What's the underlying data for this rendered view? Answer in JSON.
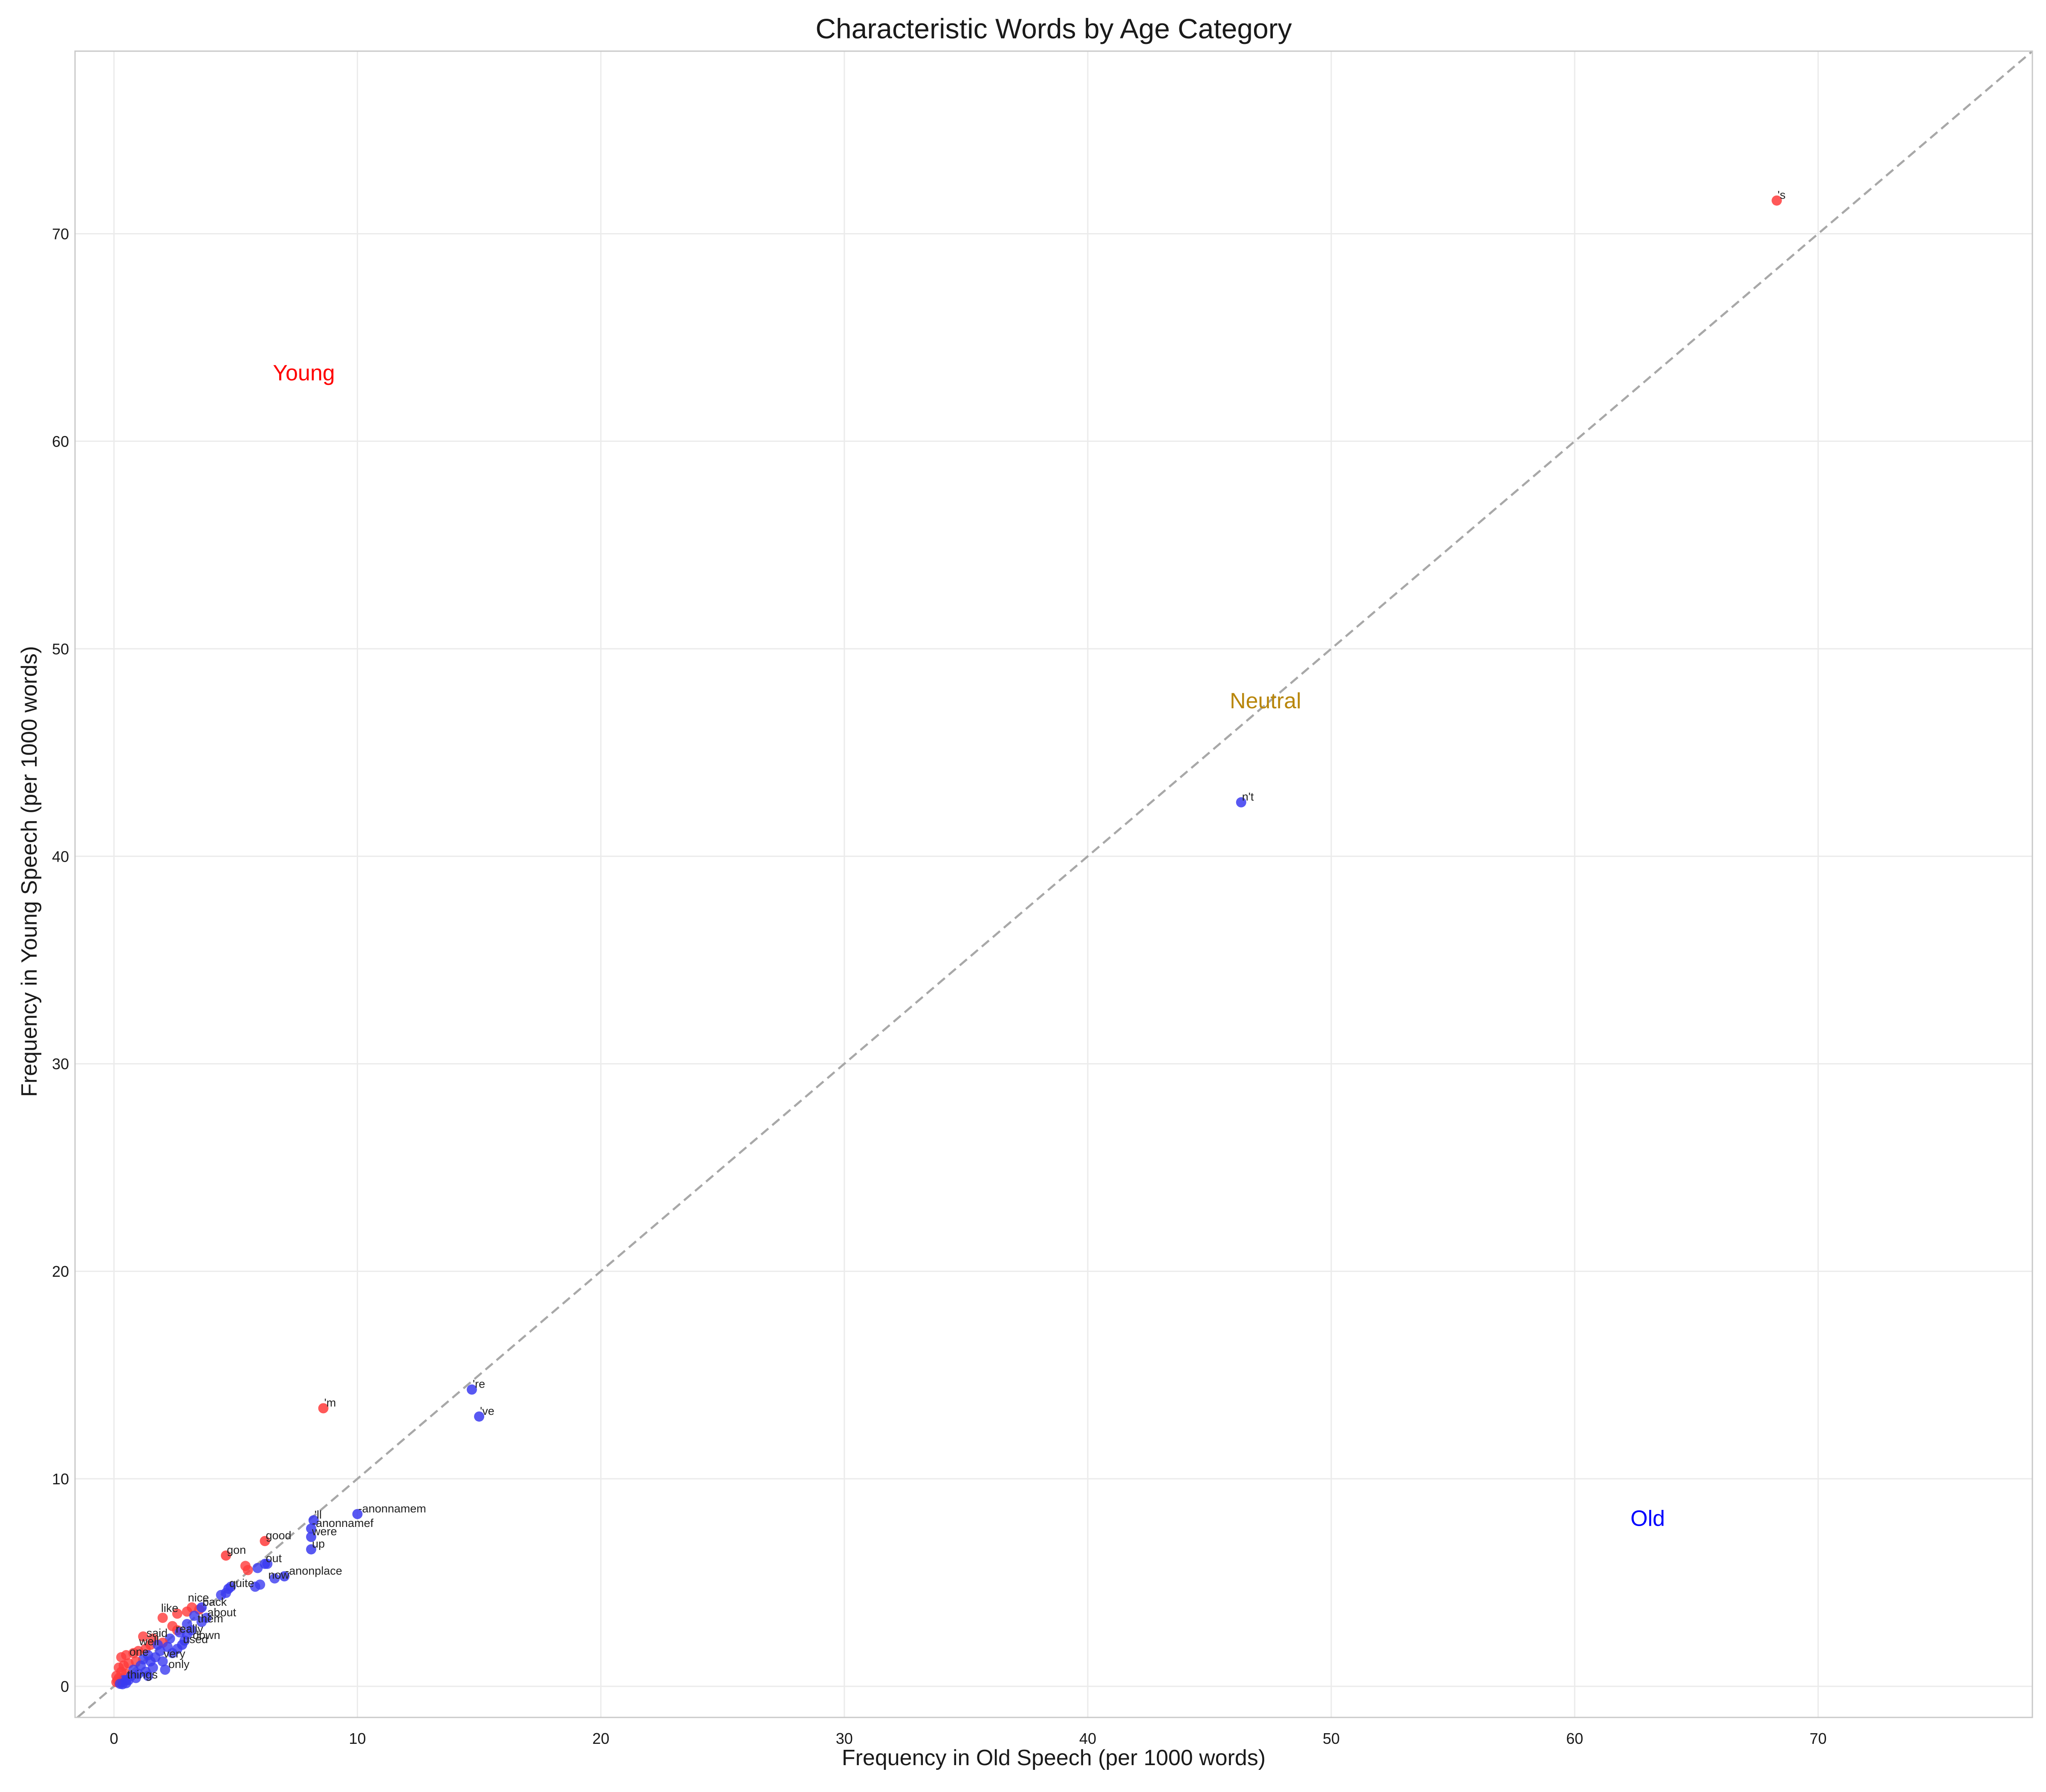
{
  "chart_data": {
    "type": "scatter",
    "title": "Characteristic Words by Age Category",
    "xlabel": "Frequency in Old Speech (per 1000 words)",
    "ylabel": "Frequency in Young Speech (per 1000 words)",
    "xlim": [
      -1.6,
      78.8
    ],
    "ylim": [
      -1.5,
      78.8
    ],
    "xticks": [
      0,
      10,
      20,
      30,
      40,
      50,
      60,
      70
    ],
    "yticks": [
      0,
      10,
      20,
      30,
      40,
      50,
      60,
      70
    ],
    "grid": true,
    "reference_line": "y = x (dashed)",
    "region_labels": [
      {
        "text": "Young",
        "x": 7.8,
        "y": 63.3,
        "color": "#ff0000"
      },
      {
        "text": "Neutral",
        "x": 47.3,
        "y": 47.5,
        "color": "#b8860b"
      },
      {
        "text": "Old",
        "x": 63.0,
        "y": 8.1,
        "color": "#0000ff"
      }
    ],
    "colors": {
      "young": "#ff3b3b",
      "old": "#3b3bf0",
      "dashed_line": "#a8a8a8"
    },
    "labeled_points": [
      {
        "label": "'s",
        "x": 68.3,
        "y": 71.6,
        "group": "young"
      },
      {
        "label": "n't",
        "x": 46.3,
        "y": 42.6,
        "group": "old"
      },
      {
        "label": "'re",
        "x": 14.7,
        "y": 14.3,
        "group": "old"
      },
      {
        "label": "'ve",
        "x": 15.0,
        "y": 13.0,
        "group": "old"
      },
      {
        "label": "'m",
        "x": 8.6,
        "y": 13.4,
        "group": "young"
      },
      {
        "label": "-anonnamem",
        "x": 10.0,
        "y": 8.3,
        "group": "old"
      },
      {
        "label": "'ll",
        "x": 8.2,
        "y": 8.0,
        "group": "old"
      },
      {
        "label": "-anonnamef",
        "x": 8.1,
        "y": 7.6,
        "group": "old"
      },
      {
        "label": "were",
        "x": 8.1,
        "y": 7.2,
        "group": "old"
      },
      {
        "label": "up",
        "x": 8.1,
        "y": 6.6,
        "group": "old"
      },
      {
        "label": "good",
        "x": 6.2,
        "y": 7.0,
        "group": "young"
      },
      {
        "label": "gon",
        "x": 4.6,
        "y": 6.3,
        "group": "young"
      },
      {
        "label": "out",
        "x": 6.2,
        "y": 5.9,
        "group": "old"
      },
      {
        "label": "-anonplace",
        "x": 7.0,
        "y": 5.3,
        "group": "old"
      },
      {
        "label": "quite",
        "x": 4.7,
        "y": 4.7,
        "group": "old"
      },
      {
        "label": "back",
        "x": 3.6,
        "y": 3.8,
        "group": "old"
      },
      {
        "label": "used",
        "x": 2.8,
        "y": 2.0,
        "group": "old"
      },
      {
        "label": "things",
        "x": 0.5,
        "y": 0.3,
        "group": "old"
      }
    ],
    "extra_labels": [
      {
        "label": "like",
        "x": 1.9,
        "y": 3.5
      },
      {
        "label": "nice",
        "x": 3.0,
        "y": 4.0
      },
      {
        "label": "about",
        "x": 3.8,
        "y": 3.3
      },
      {
        "label": "them",
        "x": 3.4,
        "y": 3.0
      },
      {
        "label": "really",
        "x": 2.5,
        "y": 2.5
      },
      {
        "label": "said",
        "x": 1.3,
        "y": 2.3
      },
      {
        "label": "down",
        "x": 3.2,
        "y": 2.2
      },
      {
        "label": "very",
        "x": 2.0,
        "y": 1.3
      },
      {
        "label": "only",
        "x": 2.2,
        "y": 0.8
      },
      {
        "label": "one",
        "x": 0.6,
        "y": 1.4
      },
      {
        "label": "now",
        "x": 6.3,
        "y": 5.1
      },
      {
        "label": "well",
        "x": 1.0,
        "y": 1.9
      }
    ],
    "cluster_points": [
      {
        "x": 5.4,
        "y": 5.8,
        "group": "young"
      },
      {
        "x": 5.5,
        "y": 5.6,
        "group": "young"
      },
      {
        "x": 5.9,
        "y": 5.7,
        "group": "old"
      },
      {
        "x": 6.3,
        "y": 5.9,
        "group": "old"
      },
      {
        "x": 6.6,
        "y": 5.2,
        "group": "old"
      },
      {
        "x": 6.0,
        "y": 4.9,
        "group": "old"
      },
      {
        "x": 5.8,
        "y": 4.8,
        "group": "old"
      },
      {
        "x": 4.8,
        "y": 4.8,
        "group": "old"
      },
      {
        "x": 4.4,
        "y": 4.4,
        "group": "old"
      },
      {
        "x": 4.6,
        "y": 4.5,
        "group": "old"
      },
      {
        "x": 3.2,
        "y": 3.8,
        "group": "young"
      },
      {
        "x": 3.5,
        "y": 3.7,
        "group": "young"
      },
      {
        "x": 3.0,
        "y": 3.6,
        "group": "young"
      },
      {
        "x": 2.6,
        "y": 3.5,
        "group": "young"
      },
      {
        "x": 2.0,
        "y": 3.3,
        "group": "young"
      },
      {
        "x": 3.3,
        "y": 3.4,
        "group": "old"
      },
      {
        "x": 3.8,
        "y": 3.3,
        "group": "old"
      },
      {
        "x": 3.6,
        "y": 3.1,
        "group": "old"
      },
      {
        "x": 3.0,
        "y": 3.0,
        "group": "old"
      },
      {
        "x": 2.4,
        "y": 2.9,
        "group": "young"
      },
      {
        "x": 2.6,
        "y": 2.7,
        "group": "young"
      },
      {
        "x": 3.2,
        "y": 2.7,
        "group": "old"
      },
      {
        "x": 3.0,
        "y": 2.5,
        "group": "old"
      },
      {
        "x": 2.7,
        "y": 2.6,
        "group": "old"
      },
      {
        "x": 2.9,
        "y": 2.2,
        "group": "old"
      },
      {
        "x": 2.3,
        "y": 2.3,
        "group": "old"
      },
      {
        "x": 1.2,
        "y": 2.4,
        "group": "young"
      },
      {
        "x": 1.6,
        "y": 2.3,
        "group": "young"
      },
      {
        "x": 2.0,
        "y": 2.1,
        "group": "young"
      },
      {
        "x": 1.5,
        "y": 2.0,
        "group": "young"
      },
      {
        "x": 1.8,
        "y": 2.0,
        "group": "old"
      },
      {
        "x": 2.2,
        "y": 1.9,
        "group": "old"
      },
      {
        "x": 1.9,
        "y": 1.7,
        "group": "old"
      },
      {
        "x": 2.4,
        "y": 1.6,
        "group": "old"
      },
      {
        "x": 2.6,
        "y": 1.8,
        "group": "old"
      },
      {
        "x": 1.3,
        "y": 1.8,
        "group": "young"
      },
      {
        "x": 1.0,
        "y": 1.7,
        "group": "young"
      },
      {
        "x": 0.8,
        "y": 1.6,
        "group": "young"
      },
      {
        "x": 0.5,
        "y": 1.5,
        "group": "young"
      },
      {
        "x": 0.3,
        "y": 1.4,
        "group": "young"
      },
      {
        "x": 1.4,
        "y": 1.5,
        "group": "old"
      },
      {
        "x": 1.7,
        "y": 1.4,
        "group": "old"
      },
      {
        "x": 2.0,
        "y": 1.2,
        "group": "old"
      },
      {
        "x": 1.5,
        "y": 1.2,
        "group": "old"
      },
      {
        "x": 1.2,
        "y": 1.3,
        "group": "old"
      },
      {
        "x": 0.9,
        "y": 1.2,
        "group": "young"
      },
      {
        "x": 0.6,
        "y": 1.1,
        "group": "young"
      },
      {
        "x": 0.4,
        "y": 1.0,
        "group": "young"
      },
      {
        "x": 0.2,
        "y": 0.9,
        "group": "young"
      },
      {
        "x": 1.1,
        "y": 1.0,
        "group": "old"
      },
      {
        "x": 1.6,
        "y": 0.9,
        "group": "old"
      },
      {
        "x": 2.1,
        "y": 0.8,
        "group": "old"
      },
      {
        "x": 1.3,
        "y": 0.7,
        "group": "old"
      },
      {
        "x": 0.8,
        "y": 0.8,
        "group": "old"
      },
      {
        "x": 0.3,
        "y": 0.7,
        "group": "young"
      },
      {
        "x": 0.5,
        "y": 0.6,
        "group": "young"
      },
      {
        "x": 0.1,
        "y": 0.5,
        "group": "young"
      },
      {
        "x": 0.2,
        "y": 0.4,
        "group": "young"
      },
      {
        "x": 0.7,
        "y": 0.5,
        "group": "old"
      },
      {
        "x": 1.0,
        "y": 0.6,
        "group": "old"
      },
      {
        "x": 1.4,
        "y": 0.5,
        "group": "old"
      },
      {
        "x": 0.9,
        "y": 0.4,
        "group": "old"
      },
      {
        "x": 0.6,
        "y": 0.3,
        "group": "old"
      },
      {
        "x": 0.4,
        "y": 0.3,
        "group": "old"
      },
      {
        "x": 0.3,
        "y": 0.2,
        "group": "old"
      },
      {
        "x": 0.2,
        "y": 0.2,
        "group": "old"
      },
      {
        "x": 0.1,
        "y": 0.2,
        "group": "young"
      },
      {
        "x": 0.15,
        "y": 0.3,
        "group": "young"
      },
      {
        "x": 0.5,
        "y": 0.15,
        "group": "old"
      },
      {
        "x": 0.35,
        "y": 0.1,
        "group": "old"
      },
      {
        "x": 0.25,
        "y": 0.12,
        "group": "old"
      }
    ]
  }
}
